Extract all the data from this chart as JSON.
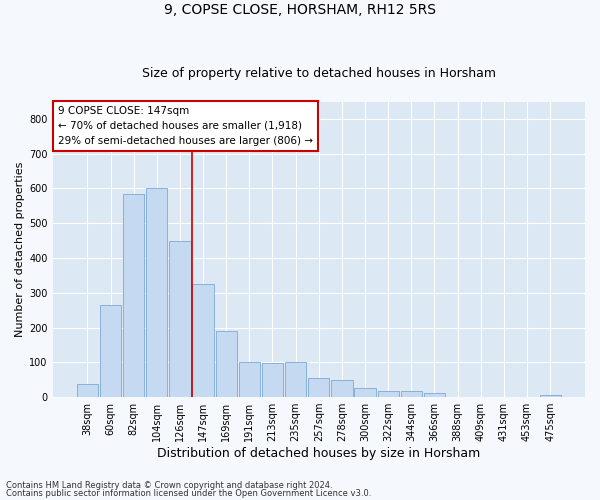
{
  "title1": "9, COPSE CLOSE, HORSHAM, RH12 5RS",
  "title2": "Size of property relative to detached houses in Horsham",
  "xlabel": "Distribution of detached houses by size in Horsham",
  "ylabel": "Number of detached properties",
  "categories": [
    "38sqm",
    "60sqm",
    "82sqm",
    "104sqm",
    "126sqm",
    "147sqm",
    "169sqm",
    "191sqm",
    "213sqm",
    "235sqm",
    "257sqm",
    "278sqm",
    "300sqm",
    "322sqm",
    "344sqm",
    "366sqm",
    "388sqm",
    "409sqm",
    "431sqm",
    "453sqm",
    "475sqm"
  ],
  "values": [
    38,
    265,
    585,
    600,
    450,
    325,
    190,
    100,
    98,
    100,
    55,
    50,
    25,
    18,
    18,
    12,
    0,
    0,
    0,
    0,
    5
  ],
  "bar_color": "#c5d9f0",
  "bar_edge_color": "#7baad4",
  "highlight_index": 5,
  "highlight_line_color": "#cc0000",
  "ylim": [
    0,
    850
  ],
  "yticks": [
    0,
    100,
    200,
    300,
    400,
    500,
    600,
    700,
    800
  ],
  "annotation_text": "9 COPSE CLOSE: 147sqm\n← 70% of detached houses are smaller (1,918)\n29% of semi-detached houses are larger (806) →",
  "annotation_box_color": "#ffffff",
  "annotation_box_edge": "#cc0000",
  "footer1": "Contains HM Land Registry data © Crown copyright and database right 2024.",
  "footer2": "Contains public sector information licensed under the Open Government Licence v3.0.",
  "plot_bg_color": "#dce9f5",
  "fig_bg_color": "#f5f8fd",
  "grid_color": "#ffffff",
  "title1_fontsize": 10,
  "title2_fontsize": 9,
  "ylabel_fontsize": 8,
  "xlabel_fontsize": 9,
  "tick_fontsize": 7,
  "annot_fontsize": 7.5,
  "footer_fontsize": 6
}
